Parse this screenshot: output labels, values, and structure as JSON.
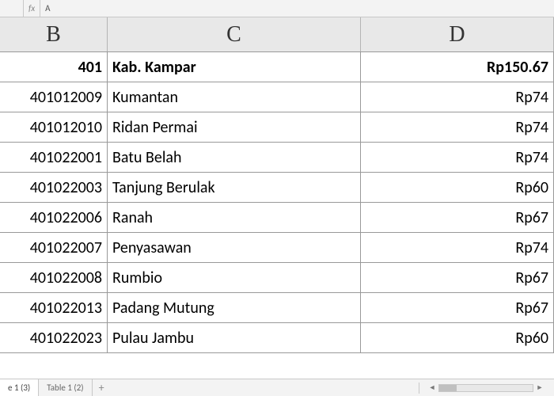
{
  "formulaBar": {
    "nameBox": "",
    "fx": "fx",
    "value": "A"
  },
  "columns": [
    {
      "letter": "B",
      "widthClass": "col-b"
    },
    {
      "letter": "C",
      "widthClass": "col-c"
    },
    {
      "letter": "D",
      "widthClass": "col-d"
    }
  ],
  "rows": [
    {
      "b": "401",
      "c": "Kab.  Kampar",
      "d": "Rp150.67",
      "bold": true
    },
    {
      "b": "401012009",
      "c": "Kumantan",
      "d": "Rp74"
    },
    {
      "b": "401012010",
      "c": "Ridan Permai",
      "d": "Rp74"
    },
    {
      "b": "401022001",
      "c": "Batu Belah",
      "d": "Rp74"
    },
    {
      "b": "401022003",
      "c": "Tanjung  Berulak",
      "d": "Rp60"
    },
    {
      "b": "401022006",
      "c": "Ranah",
      "d": "Rp67"
    },
    {
      "b": "401022007",
      "c": "Penyasawan",
      "d": "Rp74"
    },
    {
      "b": "401022008",
      "c": "Rumbio",
      "d": "Rp67"
    },
    {
      "b": "401022013",
      "c": "Padang  Mutung",
      "d": "Rp67"
    },
    {
      "b": "401022023",
      "c": "Pulau Jambu",
      "d": "Rp60"
    }
  ],
  "tabs": [
    {
      "label": "e 1 (3)",
      "active": true
    },
    {
      "label": "Table 1 (2)",
      "active": false
    }
  ],
  "addTabLabel": "+",
  "colors": {
    "headerBg": "#e8e8e8",
    "border": "#999999",
    "tabBarBg": "#f3f3f3"
  }
}
